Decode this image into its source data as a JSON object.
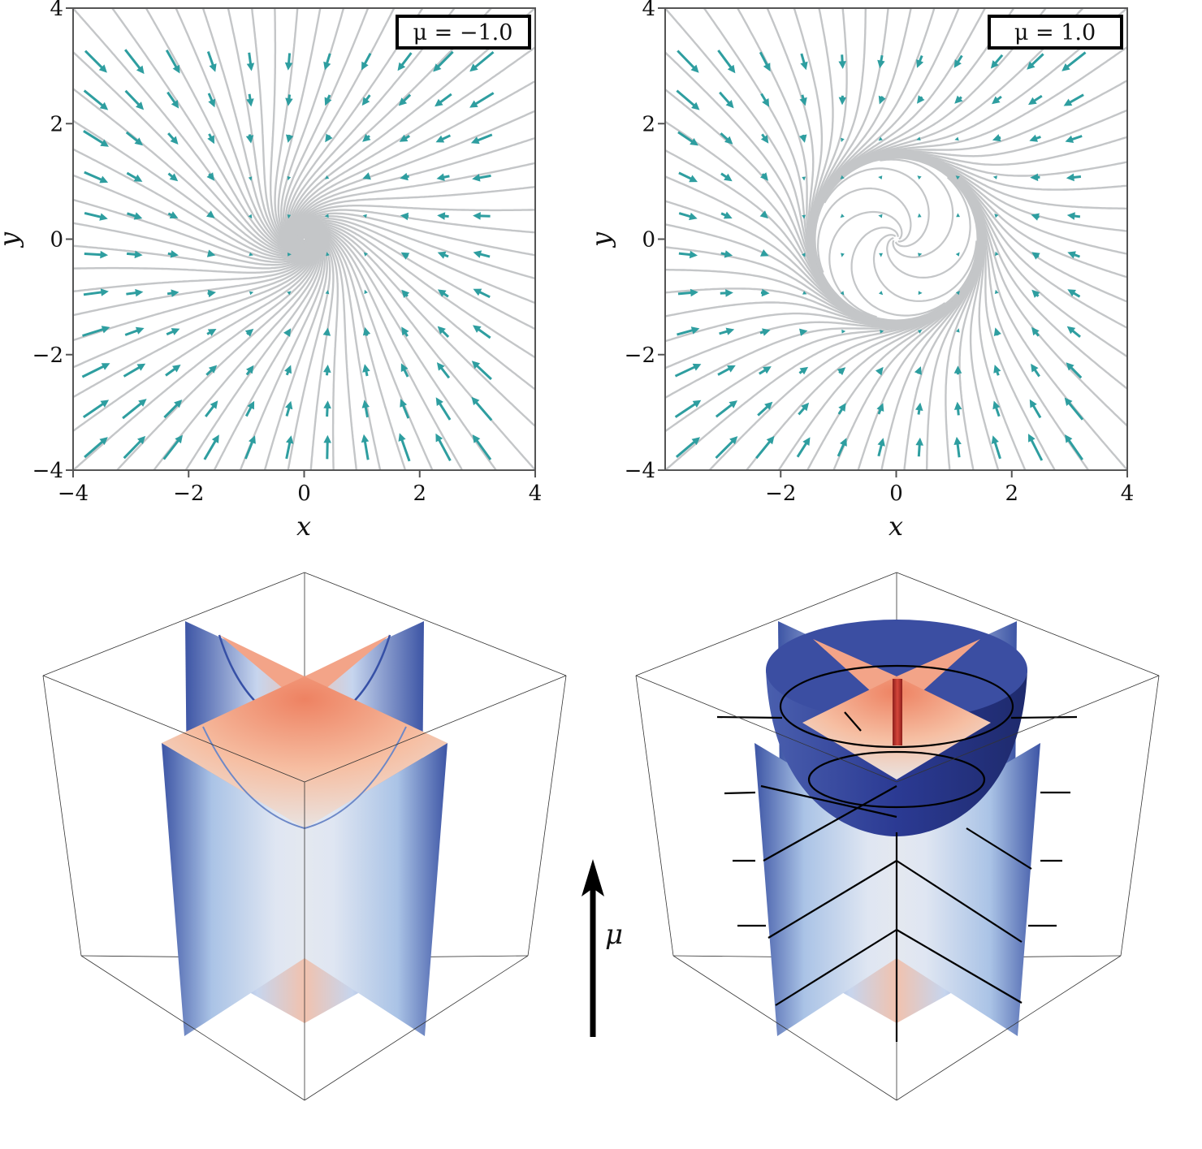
{
  "chart_data": [
    {
      "type": "streamplot",
      "panel": "top-left",
      "legend": "μ = −1.0",
      "mu": -1.0,
      "xlabel": "x",
      "ylabel": "y",
      "xlim": [
        -4,
        4
      ],
      "ylim": [
        -4,
        4
      ],
      "xticks": [
        -4,
        -2,
        0,
        2,
        4
      ],
      "yticks": [
        -4,
        -2,
        0,
        2,
        4
      ],
      "xtick_labels": [
        "−4",
        "−2",
        "0",
        "2",
        "4"
      ],
      "ytick_labels": [
        "−4",
        "−2",
        "0",
        "2",
        "4"
      ],
      "limit_cycle_radius": 0,
      "grid": false,
      "legend_placement": "top-right",
      "stream_color": "#c4c6c8",
      "arrow_color": "#2e9ea0"
    },
    {
      "type": "streamplot",
      "panel": "top-right",
      "legend": "μ = 1.0",
      "mu": 1.0,
      "xlabel": "x",
      "ylabel": "y",
      "xlim": [
        -4,
        4
      ],
      "ylim": [
        -4,
        4
      ],
      "xticks": [
        -2,
        0,
        2,
        4
      ],
      "yticks": [
        -4,
        -2,
        0,
        2,
        4
      ],
      "xtick_labels": [
        "−2",
        "0",
        "2",
        "4"
      ],
      "ytick_labels": [
        "−4",
        "−2",
        "0",
        "2",
        "4"
      ],
      "limit_cycle_radius": 1.41,
      "grid": false,
      "legend_placement": "top-right",
      "stream_color": "#c4c6c8",
      "arrow_color": "#2e9ea0"
    },
    {
      "type": "surface3d",
      "panel": "bottom-left",
      "description_colors": {
        "high": "#ef8a6a",
        "mid": "#dfe3ec",
        "low": "#3d55a5"
      }
    },
    {
      "type": "surface3d",
      "panel": "bottom-right",
      "description_colors": {
        "high": "#ef8a6a",
        "mid": "#dfe3ec",
        "low": "#3d55a5",
        "paraboloid": "#2d3a92",
        "stem": "#b8302a"
      }
    }
  ],
  "mu_arrow": {
    "label": "μ"
  }
}
